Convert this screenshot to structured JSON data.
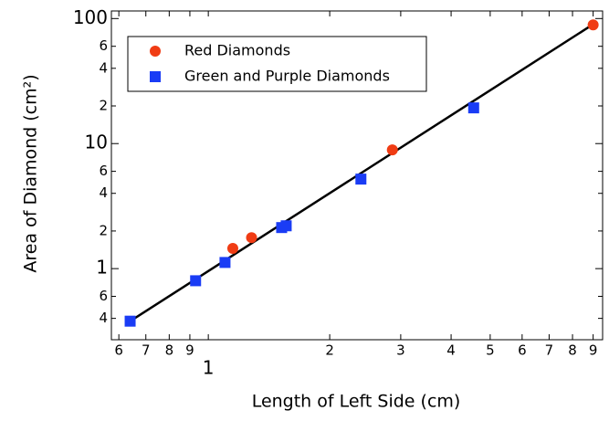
{
  "chart_data": {
    "type": "scatter",
    "x_label": "Length of Left Side (cm)",
    "y_label": "Area of Diamond (cm²)",
    "log_x": true,
    "log_y": true,
    "legend": "upper left",
    "xlim": [
      0.575,
      9.5
    ],
    "ylim": [
      0.27,
      115
    ],
    "xticks": [
      {
        "value": 0.6,
        "label": "6"
      },
      {
        "value": 0.7,
        "label": "7"
      },
      {
        "value": 0.8,
        "label": "8"
      },
      {
        "value": 0.9,
        "label": "9"
      },
      1,
      2,
      3,
      4,
      5,
      6,
      7,
      8,
      9
    ],
    "yticks": [
      {
        "value": 0.4,
        "label": "4"
      },
      {
        "value": 0.6,
        "label": "6"
      },
      1,
      2,
      4,
      6,
      10,
      {
        "value": 20,
        "label": "2"
      },
      {
        "value": 40,
        "label": "4"
      },
      {
        "value": 60,
        "label": "6"
      },
      100
    ],
    "series": [
      {
        "name": "Red Diamonds",
        "color": "#f03c14",
        "marker": "circle",
        "x": [
          1.15,
          1.28,
          2.86,
          9.0
        ],
        "values": [
          1.45,
          1.77,
          8.9,
          89
        ]
      },
      {
        "name": "Green and Purple Diamonds",
        "color": "#1a3cf5",
        "marker": "square",
        "x": [
          0.64,
          0.93,
          1.1,
          1.52,
          1.56,
          2.39,
          4.55
        ],
        "values": [
          0.38,
          0.8,
          1.12,
          2.13,
          2.2,
          5.2,
          19.3
        ]
      }
    ],
    "fit_line": {
      "color": "#000000",
      "x": [
        0.64,
        9.0
      ],
      "values": [
        0.38,
        90
      ]
    }
  }
}
